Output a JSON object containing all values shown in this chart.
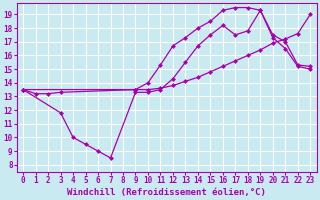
{
  "bg_color": "#c8eaf0",
  "grid_color": "#ffffff",
  "line_color": "#aa00aa",
  "marker": "D",
  "markersize": 2.5,
  "linewidth": 0.9,
  "xlabel": "Windchill (Refroidissement éolien,°C)",
  "xlabel_fontsize": 6.5,
  "tick_fontsize": 5.5,
  "ylabel_ticks": [
    8,
    9,
    10,
    11,
    12,
    13,
    14,
    15,
    16,
    17,
    18,
    19
  ],
  "xlabel_ticks": [
    0,
    1,
    2,
    3,
    4,
    5,
    6,
    7,
    8,
    9,
    10,
    11,
    12,
    13,
    14,
    15,
    16,
    17,
    18,
    19,
    20,
    21,
    22,
    23
  ],
  "xlim": [
    -0.5,
    23.5
  ],
  "ylim": [
    7.5,
    19.8
  ],
  "line1_x": [
    0,
    1,
    2,
    3,
    9,
    10,
    11,
    12,
    13,
    14,
    15,
    16,
    17,
    18,
    19,
    20,
    21,
    22,
    23
  ],
  "line1_y": [
    13.5,
    13.2,
    13.2,
    13.3,
    13.5,
    13.5,
    13.6,
    13.8,
    14.1,
    14.4,
    14.8,
    15.2,
    15.6,
    16.0,
    16.4,
    16.9,
    17.2,
    17.6,
    19.0
  ],
  "line2_x": [
    0,
    3,
    4,
    5,
    6,
    7,
    9,
    10,
    11,
    12,
    13,
    14,
    15,
    16,
    17,
    18,
    19,
    20,
    21,
    22,
    23
  ],
  "line2_y": [
    13.5,
    11.8,
    10.0,
    9.5,
    9.0,
    8.5,
    13.3,
    13.3,
    13.5,
    14.3,
    15.5,
    16.7,
    17.5,
    18.2,
    17.5,
    17.8,
    19.3,
    17.3,
    16.5,
    15.2,
    15.0
  ],
  "line3_x": [
    0,
    9,
    10,
    11,
    12,
    13,
    14,
    15,
    16,
    17,
    18,
    19,
    20,
    21,
    22,
    23
  ],
  "line3_y": [
    13.5,
    13.5,
    14.0,
    15.3,
    16.7,
    17.3,
    18.0,
    18.5,
    19.3,
    19.5,
    19.5,
    19.3,
    17.5,
    17.0,
    15.3,
    15.2
  ]
}
